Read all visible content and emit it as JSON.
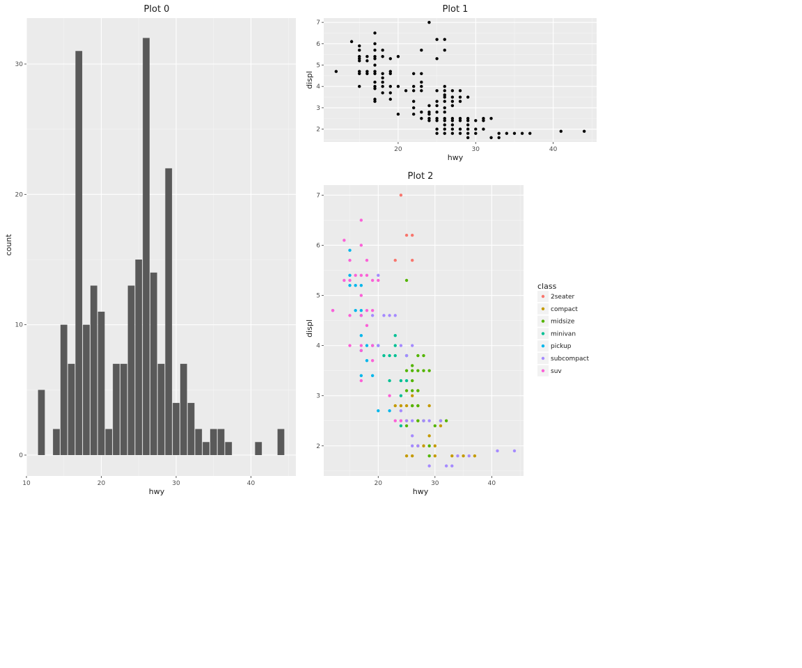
{
  "chart_data": [
    {
      "type": "bar",
      "title": "Plot 0",
      "xlabel": "hwy",
      "ylabel": "count",
      "xlim": [
        10,
        46
      ],
      "ylim": [
        0,
        35
      ],
      "x_ticks": [
        10,
        20,
        30,
        40
      ],
      "y_ticks": [
        0,
        10,
        20,
        30
      ],
      "bin_width": 1,
      "bins": [
        {
          "x": 12,
          "count": 5
        },
        {
          "x": 14,
          "count": 2
        },
        {
          "x": 15,
          "count": 10
        },
        {
          "x": 16,
          "count": 7
        },
        {
          "x": 17,
          "count": 31
        },
        {
          "x": 18,
          "count": 10
        },
        {
          "x": 19,
          "count": 13
        },
        {
          "x": 20,
          "count": 11
        },
        {
          "x": 21,
          "count": 2
        },
        {
          "x": 22,
          "count": 7
        },
        {
          "x": 23,
          "count": 7
        },
        {
          "x": 24,
          "count": 13
        },
        {
          "x": 25,
          "count": 15
        },
        {
          "x": 26,
          "count": 32
        },
        {
          "x": 27,
          "count": 14
        },
        {
          "x": 28,
          "count": 7
        },
        {
          "x": 29,
          "count": 22
        },
        {
          "x": 30,
          "count": 4
        },
        {
          "x": 31,
          "count": 7
        },
        {
          "x": 32,
          "count": 4
        },
        {
          "x": 33,
          "count": 2
        },
        {
          "x": 34,
          "count": 1
        },
        {
          "x": 35,
          "count": 2
        },
        {
          "x": 36,
          "count": 2
        },
        {
          "x": 37,
          "count": 1
        },
        {
          "x": 41,
          "count": 1
        },
        {
          "x": 44,
          "count": 2
        }
      ],
      "bar_color": "#595959",
      "grid": true
    },
    {
      "type": "scatter",
      "title": "Plot 1",
      "xlabel": "hwy",
      "ylabel": "displ",
      "xlim": [
        10.4,
        45.6
      ],
      "ylim": [
        1.4,
        7.2
      ],
      "x_ticks": [
        20,
        30,
        40
      ],
      "y_ticks": [
        2,
        3,
        4,
        5,
        6,
        7
      ],
      "point_color": "#000000",
      "grid": true,
      "points": [
        [
          12,
          4.7
        ],
        [
          14,
          6.1
        ],
        [
          15,
          4.0
        ],
        [
          15,
          4.6
        ],
        [
          15,
          4.7
        ],
        [
          15,
          5.2
        ],
        [
          15,
          5.3
        ],
        [
          15,
          5.4
        ],
        [
          15,
          5.7
        ],
        [
          15,
          5.9
        ],
        [
          16,
          4.6
        ],
        [
          16,
          4.7
        ],
        [
          16,
          5.2
        ],
        [
          16,
          5.4
        ],
        [
          17,
          3.3
        ],
        [
          17,
          3.4
        ],
        [
          17,
          3.9
        ],
        [
          17,
          4.0
        ],
        [
          17,
          4.2
        ],
        [
          17,
          4.6
        ],
        [
          17,
          4.7
        ],
        [
          17,
          5.0
        ],
        [
          17,
          5.3
        ],
        [
          17,
          5.4
        ],
        [
          17,
          5.7
        ],
        [
          17,
          6.0
        ],
        [
          17,
          6.5
        ],
        [
          18,
          3.7
        ],
        [
          18,
          4.0
        ],
        [
          18,
          4.2
        ],
        [
          18,
          4.4
        ],
        [
          18,
          4.6
        ],
        [
          18,
          5.4
        ],
        [
          18,
          5.7
        ],
        [
          19,
          3.4
        ],
        [
          19,
          3.7
        ],
        [
          19,
          4.0
        ],
        [
          19,
          4.6
        ],
        [
          19,
          4.7
        ],
        [
          19,
          5.3
        ],
        [
          20,
          2.7
        ],
        [
          20,
          4.0
        ],
        [
          20,
          5.4
        ],
        [
          21,
          3.8
        ],
        [
          22,
          2.7
        ],
        [
          22,
          3.0
        ],
        [
          22,
          3.3
        ],
        [
          22,
          3.8
        ],
        [
          22,
          4.0
        ],
        [
          22,
          4.6
        ],
        [
          23,
          2.5
        ],
        [
          23,
          2.8
        ],
        [
          23,
          3.8
        ],
        [
          23,
          4.0
        ],
        [
          23,
          4.2
        ],
        [
          23,
          4.6
        ],
        [
          23,
          5.7
        ],
        [
          24,
          2.4
        ],
        [
          24,
          2.5
        ],
        [
          24,
          2.7
        ],
        [
          24,
          2.8
        ],
        [
          24,
          3.1
        ],
        [
          24,
          7.0
        ],
        [
          25,
          1.8
        ],
        [
          25,
          2.0
        ],
        [
          25,
          2.4
        ],
        [
          25,
          2.5
        ],
        [
          25,
          2.8
        ],
        [
          25,
          3.1
        ],
        [
          25,
          3.3
        ],
        [
          25,
          3.8
        ],
        [
          25,
          5.3
        ],
        [
          25,
          6.2
        ],
        [
          26,
          1.8
        ],
        [
          26,
          2.0
        ],
        [
          26,
          2.2
        ],
        [
          26,
          2.4
        ],
        [
          26,
          2.5
        ],
        [
          26,
          2.8
        ],
        [
          26,
          3.0
        ],
        [
          26,
          3.3
        ],
        [
          26,
          3.5
        ],
        [
          26,
          3.6
        ],
        [
          26,
          3.8
        ],
        [
          26,
          4.0
        ],
        [
          26,
          5.7
        ],
        [
          26,
          6.2
        ],
        [
          27,
          1.8
        ],
        [
          27,
          2.0
        ],
        [
          27,
          2.2
        ],
        [
          27,
          2.4
        ],
        [
          27,
          2.5
        ],
        [
          27,
          3.1
        ],
        [
          27,
          3.3
        ],
        [
          27,
          3.5
        ],
        [
          27,
          3.8
        ],
        [
          28,
          1.8
        ],
        [
          28,
          2.0
        ],
        [
          28,
          2.4
        ],
        [
          28,
          2.5
        ],
        [
          28,
          3.3
        ],
        [
          28,
          3.5
        ],
        [
          28,
          3.8
        ],
        [
          29,
          1.6
        ],
        [
          29,
          1.8
        ],
        [
          29,
          2.0
        ],
        [
          29,
          2.2
        ],
        [
          29,
          2.4
        ],
        [
          29,
          2.5
        ],
        [
          29,
          3.5
        ],
        [
          30,
          1.8
        ],
        [
          30,
          2.0
        ],
        [
          30,
          2.4
        ],
        [
          31,
          2.0
        ],
        [
          31,
          2.4
        ],
        [
          31,
          2.5
        ],
        [
          32,
          1.6
        ],
        [
          32,
          2.5
        ],
        [
          33,
          1.6
        ],
        [
          33,
          1.8
        ],
        [
          34,
          1.8
        ],
        [
          35,
          1.8
        ],
        [
          36,
          1.8
        ],
        [
          37,
          1.8
        ],
        [
          41,
          1.9
        ],
        [
          44,
          1.9
        ]
      ]
    },
    {
      "type": "scatter",
      "title": "Plot 2",
      "xlabel": "hwy",
      "ylabel": "displ",
      "xlim": [
        10.4,
        45.6
      ],
      "ylim": [
        1.4,
        7.2
      ],
      "x_ticks": [
        20,
        30,
        40
      ],
      "y_ticks": [
        2,
        3,
        4,
        5,
        6,
        7
      ],
      "grid": true,
      "legend": {
        "title": "class",
        "position": "right",
        "items": [
          {
            "label": "2seater",
            "color": "#F8766D"
          },
          {
            "label": "compact",
            "color": "#C49A00"
          },
          {
            "label": "midsize",
            "color": "#53B400"
          },
          {
            "label": "minivan",
            "color": "#00C094"
          },
          {
            "label": "pickup",
            "color": "#00B6EB"
          },
          {
            "label": "subcompact",
            "color": "#A58AFF"
          },
          {
            "label": "suv",
            "color": "#FB61D7"
          }
        ]
      },
      "series": [
        {
          "name": "2seater",
          "points": [
            [
              23,
              5.7
            ],
            [
              24,
              7.0
            ],
            [
              25,
              6.2
            ],
            [
              26,
              5.7
            ],
            [
              26,
              6.2
            ]
          ]
        },
        {
          "name": "compact",
          "points": [
            [
              23,
              2.8
            ],
            [
              24,
              2.8
            ],
            [
              25,
              1.8
            ],
            [
              25,
              2.5
            ],
            [
              25,
              2.8
            ],
            [
              26,
              1.8
            ],
            [
              26,
              2.8
            ],
            [
              26,
              3.0
            ],
            [
              27,
              2.0
            ],
            [
              27,
              2.5
            ],
            [
              27,
              2.8
            ],
            [
              27,
              3.1
            ],
            [
              28,
              2.0
            ],
            [
              29,
              2.2
            ],
            [
              29,
              2.8
            ],
            [
              30,
              1.8
            ],
            [
              30,
              2.0
            ],
            [
              31,
              2.4
            ],
            [
              33,
              1.8
            ],
            [
              35,
              1.8
            ],
            [
              37,
              1.8
            ]
          ]
        },
        {
          "name": "midsize",
          "points": [
            [
              25,
              2.4
            ],
            [
              25,
              3.1
            ],
            [
              25,
              3.5
            ],
            [
              25,
              5.3
            ],
            [
              26,
              2.8
            ],
            [
              26,
              3.1
            ],
            [
              26,
              3.3
            ],
            [
              26,
              3.5
            ],
            [
              26,
              3.6
            ],
            [
              27,
              2.5
            ],
            [
              27,
              2.8
            ],
            [
              27,
              3.1
            ],
            [
              27,
              3.5
            ],
            [
              27,
              3.8
            ],
            [
              28,
              2.5
            ],
            [
              28,
              3.5
            ],
            [
              28,
              3.8
            ],
            [
              29,
              1.8
            ],
            [
              29,
              2.0
            ],
            [
              29,
              3.5
            ],
            [
              30,
              2.4
            ],
            [
              31,
              2.5
            ],
            [
              32,
              2.5
            ]
          ]
        },
        {
          "name": "minivan",
          "points": [
            [
              21,
              3.8
            ],
            [
              22,
              3.3
            ],
            [
              22,
              3.8
            ],
            [
              23,
              3.8
            ],
            [
              23,
              4.0
            ],
            [
              23,
              4.2
            ],
            [
              24,
              2.4
            ],
            [
              24,
              3.0
            ],
            [
              24,
              3.3
            ],
            [
              25,
              3.3
            ],
            [
              25,
              3.8
            ]
          ]
        },
        {
          "name": "pickup",
          "points": [
            [
              15,
              5.2
            ],
            [
              15,
              5.4
            ],
            [
              15,
              5.9
            ],
            [
              16,
              4.7
            ],
            [
              16,
              5.2
            ],
            [
              17,
              3.4
            ],
            [
              17,
              3.9
            ],
            [
              17,
              4.2
            ],
            [
              17,
              4.6
            ],
            [
              17,
              4.7
            ],
            [
              17,
              5.2
            ],
            [
              18,
              3.7
            ],
            [
              18,
              4.0
            ],
            [
              19,
              3.4
            ],
            [
              19,
              4.0
            ],
            [
              20,
              2.7
            ],
            [
              20,
              4.0
            ],
            [
              22,
              2.7
            ]
          ]
        },
        {
          "name": "subcompact",
          "points": [
            [
              12,
              4.7
            ],
            [
              19,
              4.6
            ],
            [
              20,
              4.0
            ],
            [
              20,
              5.4
            ],
            [
              21,
              4.6
            ],
            [
              22,
              4.6
            ],
            [
              23,
              4.6
            ],
            [
              24,
              2.5
            ],
            [
              24,
              2.7
            ],
            [
              24,
              4.0
            ],
            [
              25,
              2.5
            ],
            [
              25,
              3.8
            ],
            [
              26,
              2.0
            ],
            [
              26,
              2.2
            ],
            [
              26,
              2.5
            ],
            [
              26,
              4.0
            ],
            [
              27,
              2.0
            ],
            [
              28,
              2.5
            ],
            [
              29,
              1.6
            ],
            [
              29,
              2.5
            ],
            [
              31,
              2.5
            ],
            [
              32,
              1.6
            ],
            [
              33,
              1.6
            ],
            [
              34,
              1.8
            ],
            [
              36,
              1.8
            ],
            [
              41,
              1.9
            ],
            [
              44,
              1.9
            ]
          ]
        },
        {
          "name": "suv",
          "points": [
            [
              12,
              4.7
            ],
            [
              14,
              5.3
            ],
            [
              14,
              6.1
            ],
            [
              15,
              4.0
            ],
            [
              15,
              4.6
            ],
            [
              15,
              5.3
            ],
            [
              15,
              5.7
            ],
            [
              16,
              5.4
            ],
            [
              17,
              3.3
            ],
            [
              17,
              3.9
            ],
            [
              17,
              4.0
            ],
            [
              17,
              4.6
            ],
            [
              17,
              5.0
            ],
            [
              17,
              5.4
            ],
            [
              17,
              6.0
            ],
            [
              17,
              6.5
            ],
            [
              18,
              4.4
            ],
            [
              18,
              4.7
            ],
            [
              18,
              5.4
            ],
            [
              18,
              5.7
            ],
            [
              19,
              3.7
            ],
            [
              19,
              4.0
            ],
            [
              19,
              4.7
            ],
            [
              19,
              5.3
            ],
            [
              20,
              5.3
            ],
            [
              22,
              3.0
            ],
            [
              23,
              2.5
            ],
            [
              24,
              2.5
            ]
          ]
        }
      ]
    }
  ]
}
